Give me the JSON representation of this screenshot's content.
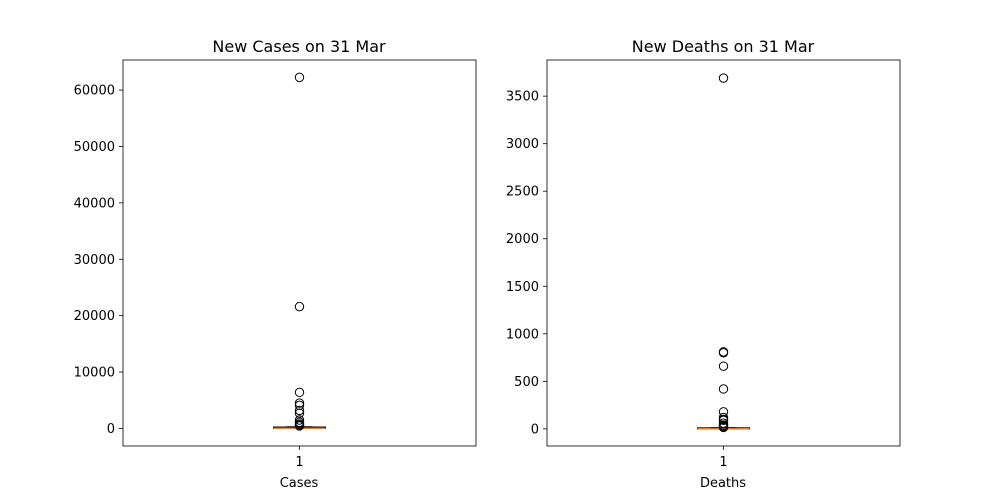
{
  "chart_data": [
    {
      "type": "box",
      "title": "New Cases on 31 Mar",
      "xlabel": "Cases",
      "ylabel": "",
      "categories": [
        "1"
      ],
      "ylim": [
        -3110,
        65330
      ],
      "yticks": [
        0,
        10000,
        20000,
        30000,
        40000,
        50000,
        60000
      ],
      "box": {
        "q1": 0,
        "median": 10,
        "q3": 150,
        "whisker_low": 0,
        "whisker_high": 300
      },
      "outliers": [
        62250,
        21600,
        6400,
        4500,
        4100,
        3200,
        2700,
        1500,
        1100,
        800,
        600,
        450
      ]
    },
    {
      "type": "box",
      "title": "New Deaths on 31 Mar",
      "xlabel": "Deaths",
      "ylabel": "",
      "categories": [
        "1"
      ],
      "ylim": [
        -180,
        3880
      ],
      "yticks": [
        0,
        500,
        1000,
        1500,
        2000,
        2500,
        3000,
        3500
      ],
      "box": {
        "q1": 0,
        "median": 0,
        "q3": 5,
        "whisker_low": 0,
        "whisker_high": 12
      },
      "outliers": [
        3690,
        810,
        800,
        660,
        420,
        180,
        120,
        100,
        90,
        60,
        40,
        30,
        20,
        15
      ]
    }
  ],
  "style": {
    "median_color": "#ff7f0e",
    "box_color": "#000000",
    "flier_color": "#000000"
  }
}
